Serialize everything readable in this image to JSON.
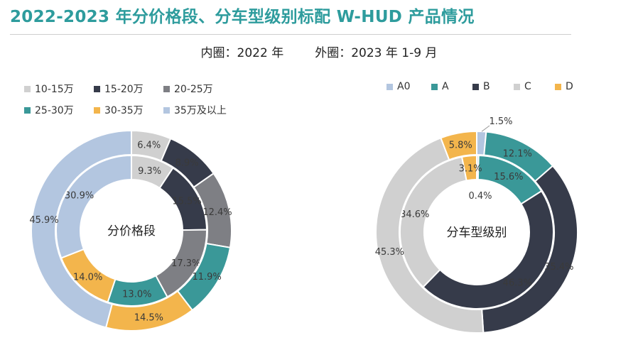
{
  "header": {
    "title": "2022-2023 年分价格段、分车型级别标配 W-HUD 产品情况",
    "subtitle_inner": "内圈：2022 年",
    "subtitle_outer": "外圈：2023 年 1-9 月"
  },
  "chart_data": [
    {
      "type": "pie",
      "subtype": "double-donut",
      "center_label": "分价格段",
      "legend_position": "top-left",
      "categories": [
        "10-15万",
        "15-20万",
        "20-25万",
        "25-30万",
        "30-35万",
        "35万及以上"
      ],
      "colors": [
        "#d0d0d0",
        "#363b4a",
        "#7e7f84",
        "#3a9898",
        "#f3b54c",
        "#b3c6e0"
      ],
      "series": [
        {
          "ring": "inner",
          "values": [
            9.3,
            15.5,
            17.3,
            13.0,
            14.0,
            30.9
          ],
          "labels": [
            "9.3%",
            "15.5%",
            "17.3%",
            "13.0%",
            "14.0%",
            "30.9%"
          ]
        },
        {
          "ring": "outer",
          "values": [
            6.4,
            8.9,
            12.4,
            11.9,
            14.5,
            45.9
          ],
          "labels": [
            "6.4%",
            "8.9%",
            "12.4%",
            "11.9%",
            "14.5%",
            "45.9%"
          ]
        }
      ]
    },
    {
      "type": "pie",
      "subtype": "double-donut",
      "center_label": "分车型级别",
      "legend_position": "top",
      "categories": [
        "A0",
        "A",
        "B",
        "C",
        "D"
      ],
      "colors": [
        "#b3c6e0",
        "#3a9898",
        "#363b4a",
        "#d0d0d0",
        "#f3b54c"
      ],
      "series": [
        {
          "ring": "inner",
          "values": [
            0.4,
            15.6,
            46.3,
            34.6,
            3.1
          ],
          "labels": [
            "0.4%",
            "15.6%",
            "46.3%",
            "34.6%",
            "3.1%"
          ]
        },
        {
          "ring": "outer",
          "values": [
            1.5,
            12.1,
            35.4,
            45.3,
            5.8
          ],
          "labels": [
            "1.5%",
            "12.1%",
            "35.4%",
            "45.3%",
            "5.8%"
          ]
        }
      ]
    }
  ]
}
